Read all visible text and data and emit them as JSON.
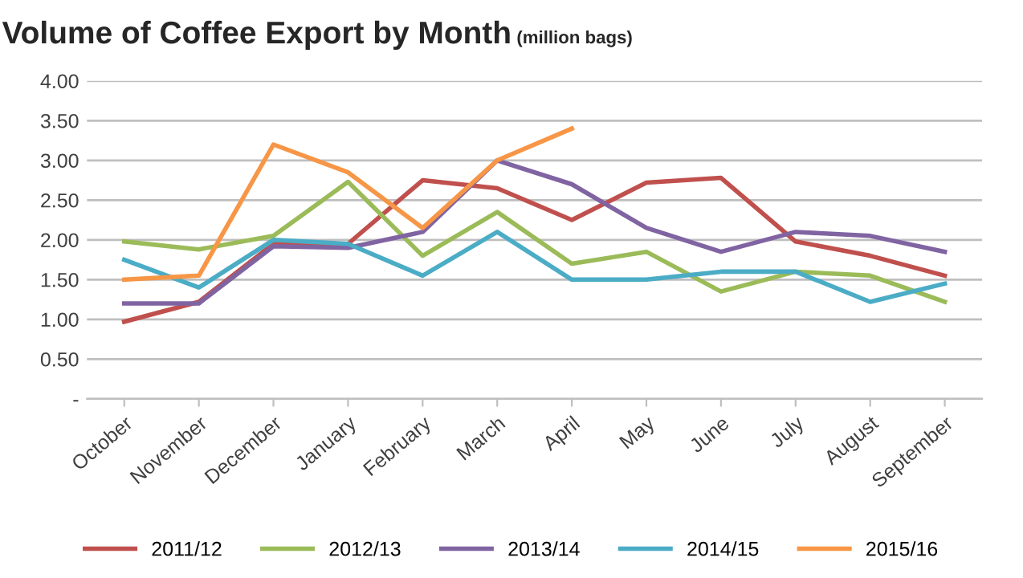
{
  "chart_data": {
    "type": "line",
    "title": "Volume of Coffee Export by Month",
    "subtitle": "(million bags)",
    "categories": [
      "October",
      "November",
      "December",
      "January",
      "February",
      "March",
      "April",
      "May",
      "June",
      "July",
      "August",
      "September"
    ],
    "series": [
      {
        "name": "2011/12",
        "color": "#c0504d",
        "values": [
          0.97,
          1.22,
          1.95,
          1.95,
          2.75,
          2.65,
          2.25,
          2.72,
          2.78,
          1.98,
          1.8,
          1.55
        ]
      },
      {
        "name": "2012/13",
        "color": "#9bbb59",
        "values": [
          1.98,
          1.88,
          2.05,
          2.73,
          1.8,
          2.35,
          1.7,
          1.85,
          1.35,
          1.6,
          1.55,
          1.22
        ]
      },
      {
        "name": "2013/14",
        "color": "#8064a2",
        "values": [
          1.2,
          1.2,
          1.92,
          1.9,
          2.1,
          3.0,
          2.7,
          2.15,
          1.85,
          2.1,
          2.05,
          1.85
        ]
      },
      {
        "name": "2014/15",
        "color": "#4bacc6",
        "values": [
          1.75,
          1.4,
          2.0,
          1.95,
          1.55,
          2.1,
          1.5,
          1.5,
          1.6,
          1.6,
          1.22,
          1.45
        ]
      },
      {
        "name": "2015/16",
        "color": "#f79646",
        "values": [
          1.5,
          1.55,
          3.2,
          2.85,
          2.15,
          3.0,
          3.4,
          null,
          null,
          null,
          null,
          null
        ]
      }
    ],
    "ylim": [
      0,
      4
    ],
    "yticks": [
      {
        "value": 0,
        "label": "-"
      },
      {
        "value": 0.5,
        "label": "0.50"
      },
      {
        "value": 1,
        "label": "1.00"
      },
      {
        "value": 1.5,
        "label": "1.50"
      },
      {
        "value": 2,
        "label": "2.00"
      },
      {
        "value": 2.5,
        "label": "2.50"
      },
      {
        "value": 3,
        "label": "3.00"
      },
      {
        "value": 3.5,
        "label": "3.50"
      },
      {
        "value": 4,
        "label": "4.00"
      }
    ],
    "grid": "y",
    "legend": "bottom",
    "marker": "none",
    "line_style": "solid"
  }
}
